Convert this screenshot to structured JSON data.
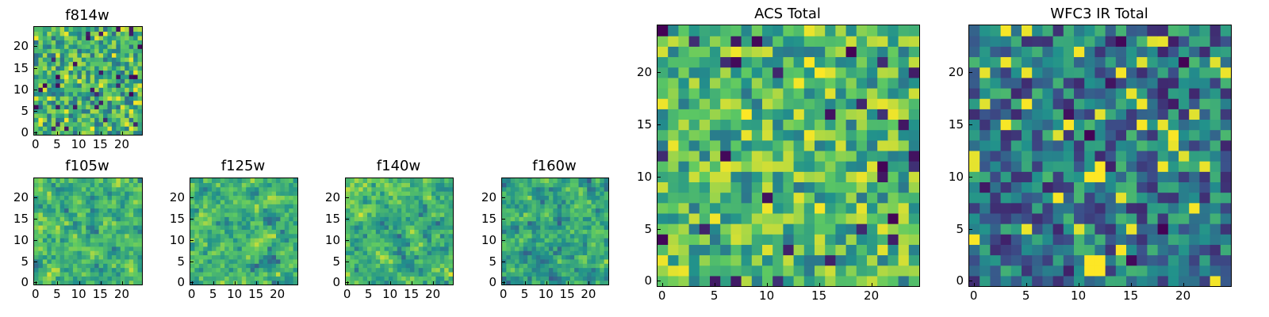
{
  "figure": {
    "colormap": [
      "#440154",
      "#3b528b",
      "#21918c",
      "#5ec962",
      "#fde725"
    ]
  },
  "chart_data": [
    {
      "id": "f814w",
      "type": "heatmap",
      "title": "f814w",
      "grid_size": 25,
      "xlim": [
        -0.5,
        24.5
      ],
      "ylim": [
        -0.5,
        24.5
      ],
      "xticks": [
        0,
        5,
        10,
        15,
        20
      ],
      "yticks": [
        0,
        5,
        10,
        15,
        20
      ],
      "colormap": "viridis",
      "value_range": [
        0,
        1
      ],
      "seed": 814,
      "bias": 0.62,
      "smooth": 0
    },
    {
      "id": "f105w",
      "type": "heatmap",
      "title": "f105w",
      "grid_size": 25,
      "xlim": [
        -0.5,
        24.5
      ],
      "ylim": [
        -0.5,
        24.5
      ],
      "xticks": [
        0,
        5,
        10,
        15,
        20
      ],
      "yticks": [
        0,
        5,
        10,
        15,
        20
      ],
      "colormap": "viridis",
      "value_range": [
        0,
        1
      ],
      "seed": 105,
      "bias": 0.66,
      "smooth": 1
    },
    {
      "id": "f125w",
      "type": "heatmap",
      "title": "f125w",
      "grid_size": 25,
      "xlim": [
        -0.5,
        24.5
      ],
      "ylim": [
        -0.5,
        24.5
      ],
      "xticks": [
        0,
        5,
        10,
        15,
        20
      ],
      "yticks": [
        0,
        5,
        10,
        15,
        20
      ],
      "colormap": "viridis",
      "value_range": [
        0,
        1
      ],
      "seed": 125,
      "bias": 0.66,
      "smooth": 1
    },
    {
      "id": "f140w",
      "type": "heatmap",
      "title": "f140w",
      "grid_size": 25,
      "xlim": [
        -0.5,
        24.5
      ],
      "ylim": [
        -0.5,
        24.5
      ],
      "xticks": [
        0,
        5,
        10,
        15,
        20
      ],
      "yticks": [
        0,
        5,
        10,
        15,
        20
      ],
      "colormap": "viridis",
      "value_range": [
        0,
        1
      ],
      "seed": 140,
      "bias": 0.64,
      "smooth": 1
    },
    {
      "id": "f160w",
      "type": "heatmap",
      "title": "f160w",
      "grid_size": 25,
      "xlim": [
        -0.5,
        24.5
      ],
      "ylim": [
        -0.5,
        24.5
      ],
      "xticks": [
        0,
        5,
        10,
        15,
        20
      ],
      "yticks": [
        0,
        5,
        10,
        15,
        20
      ],
      "colormap": "viridis",
      "value_range": [
        0,
        1
      ],
      "seed": 160,
      "bias": 0.6,
      "smooth": 1
    },
    {
      "id": "acs_total",
      "type": "heatmap",
      "title": "ACS Total",
      "grid_size": 25,
      "xlim": [
        -0.5,
        24.5
      ],
      "ylim": [
        -0.5,
        24.5
      ],
      "xticks": [
        0,
        5,
        10,
        15,
        20
      ],
      "yticks": [
        0,
        5,
        10,
        15,
        20
      ],
      "colormap": "viridis",
      "value_range": [
        0,
        1
      ],
      "seed": 1001,
      "bias": 0.66,
      "smooth": 0
    },
    {
      "id": "wfc3_ir_total",
      "type": "heatmap",
      "title": "WFC3 IR Total",
      "grid_size": 25,
      "xlim": [
        -0.5,
        24.5
      ],
      "ylim": [
        -0.5,
        24.5
      ],
      "xticks": [
        0,
        5,
        10,
        15,
        20
      ],
      "yticks": [
        0,
        5,
        10,
        15,
        20
      ],
      "colormap": "viridis",
      "value_range": [
        0,
        1
      ],
      "seed": 2002,
      "bias": 0.4,
      "smooth": 0,
      "bright_cells": [
        [
          11,
          10
        ],
        [
          12,
          10
        ],
        [
          12,
          11
        ],
        [
          11,
          1
        ],
        [
          12,
          1
        ],
        [
          11,
          2
        ],
        [
          12,
          2
        ]
      ]
    }
  ]
}
